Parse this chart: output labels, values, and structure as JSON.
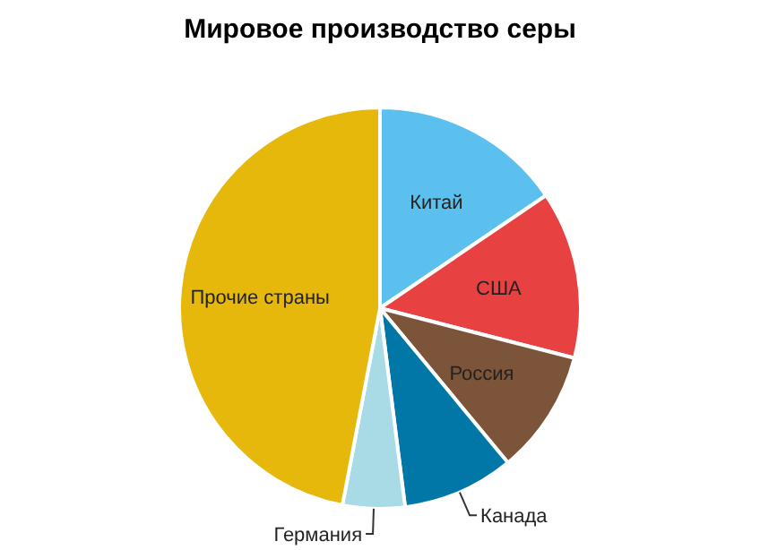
{
  "chart_data": {
    "type": "pie",
    "title": "Мировое производство серы",
    "categories": [
      "Китай",
      "США",
      "Россия",
      "Канада",
      "Германия",
      "Прочие страны"
    ],
    "values": [
      15.5,
      13.5,
      10,
      9,
      5,
      47
    ],
    "colors": [
      "#5bc0ee",
      "#e84142",
      "#7b5439",
      "#0177a8",
      "#a9dbe6",
      "#e6b80c"
    ]
  }
}
